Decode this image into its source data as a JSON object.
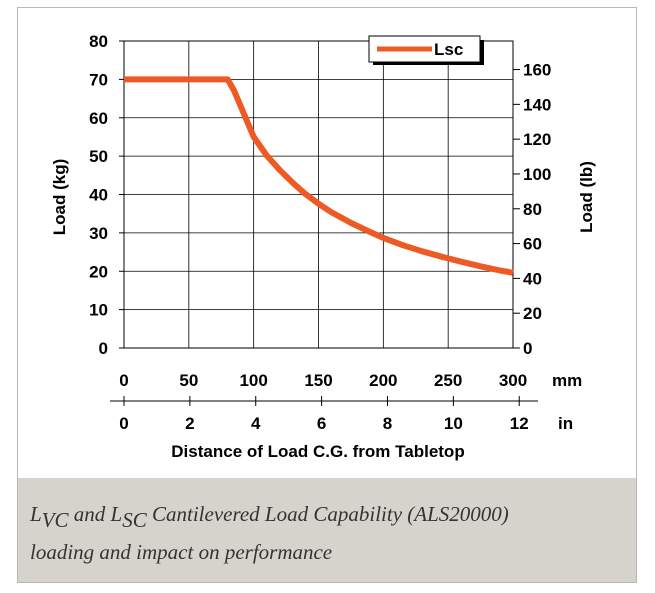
{
  "chart_data": {
    "type": "line",
    "title": "",
    "xlabel": "Distance of Load C.G. from Tabletop",
    "ylabel": "Load (kg)",
    "y2label": "Load (lb)",
    "x_unit_mm": "mm",
    "x_unit_in": "in",
    "xlim": [
      0,
      300
    ],
    "ylim": [
      0,
      80
    ],
    "y2lim": [
      0,
      176.4
    ],
    "x_ticks_mm": [
      "0",
      "50",
      "100",
      "150",
      "200",
      "250",
      "300"
    ],
    "x_ticks_in": [
      "0",
      "2",
      "4",
      "6",
      "8",
      "10",
      "12"
    ],
    "y_ticks": [
      "0",
      "10",
      "20",
      "30",
      "40",
      "50",
      "60",
      "70",
      "80"
    ],
    "y2_ticks": [
      "0",
      "20",
      "40",
      "60",
      "80",
      "100",
      "120",
      "140",
      "160"
    ],
    "grid": true,
    "legend_position": "top-right",
    "series": [
      {
        "name": "Lsc",
        "color": "#ee5a24",
        "x": [
          0,
          20,
          40,
          60,
          80,
          85,
          90,
          95,
          100,
          110,
          120,
          130,
          140,
          150,
          160,
          175,
          190,
          200,
          215,
          230,
          245,
          260,
          275,
          290,
          300
        ],
        "y": [
          70,
          70,
          70,
          70,
          70,
          67,
          63,
          59,
          55,
          50.2,
          46.4,
          43.1,
          40.1,
          37.6,
          35.4,
          32.6,
          30.2,
          28.7,
          26.8,
          25.2,
          23.8,
          22.5,
          21.3,
          20.2,
          19.6
        ]
      }
    ]
  },
  "caption": {
    "l_vc": "L",
    "l_vc_sub": "VC",
    "and_text": " and ",
    "l_sc": "L",
    "l_sc_sub": "SC",
    "rest": " Cantilevered Load Capability (ALS20000)",
    "line2": "loading and impact on performance"
  }
}
